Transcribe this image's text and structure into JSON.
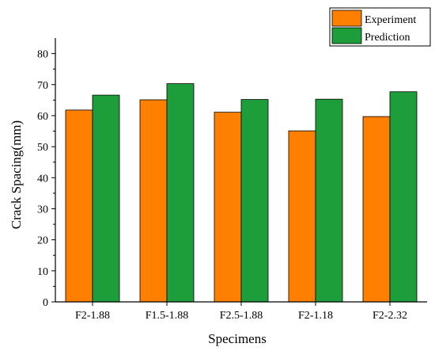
{
  "chart_data": {
    "type": "bar",
    "xlabel": "Specimens",
    "ylabel": "Crack Spacing(mm)",
    "ylim": [
      0,
      85
    ],
    "yticks": [
      0,
      10,
      20,
      30,
      40,
      50,
      60,
      70,
      80
    ],
    "categories": [
      "F2-1.88",
      "F1.5-1.88",
      "F2.5-1.88",
      "F2-1.18",
      "F2-2.32"
    ],
    "series": [
      {
        "name": "Experiment",
        "color": "#ff8000",
        "values": [
          61.8,
          65.1,
          61.1,
          55.1,
          59.7
        ]
      },
      {
        "name": "Prediction",
        "color": "#1e9e3a",
        "values": [
          66.6,
          70.3,
          65.2,
          65.3,
          67.7
        ]
      }
    ],
    "legend_position": "top-right",
    "grid": false
  }
}
